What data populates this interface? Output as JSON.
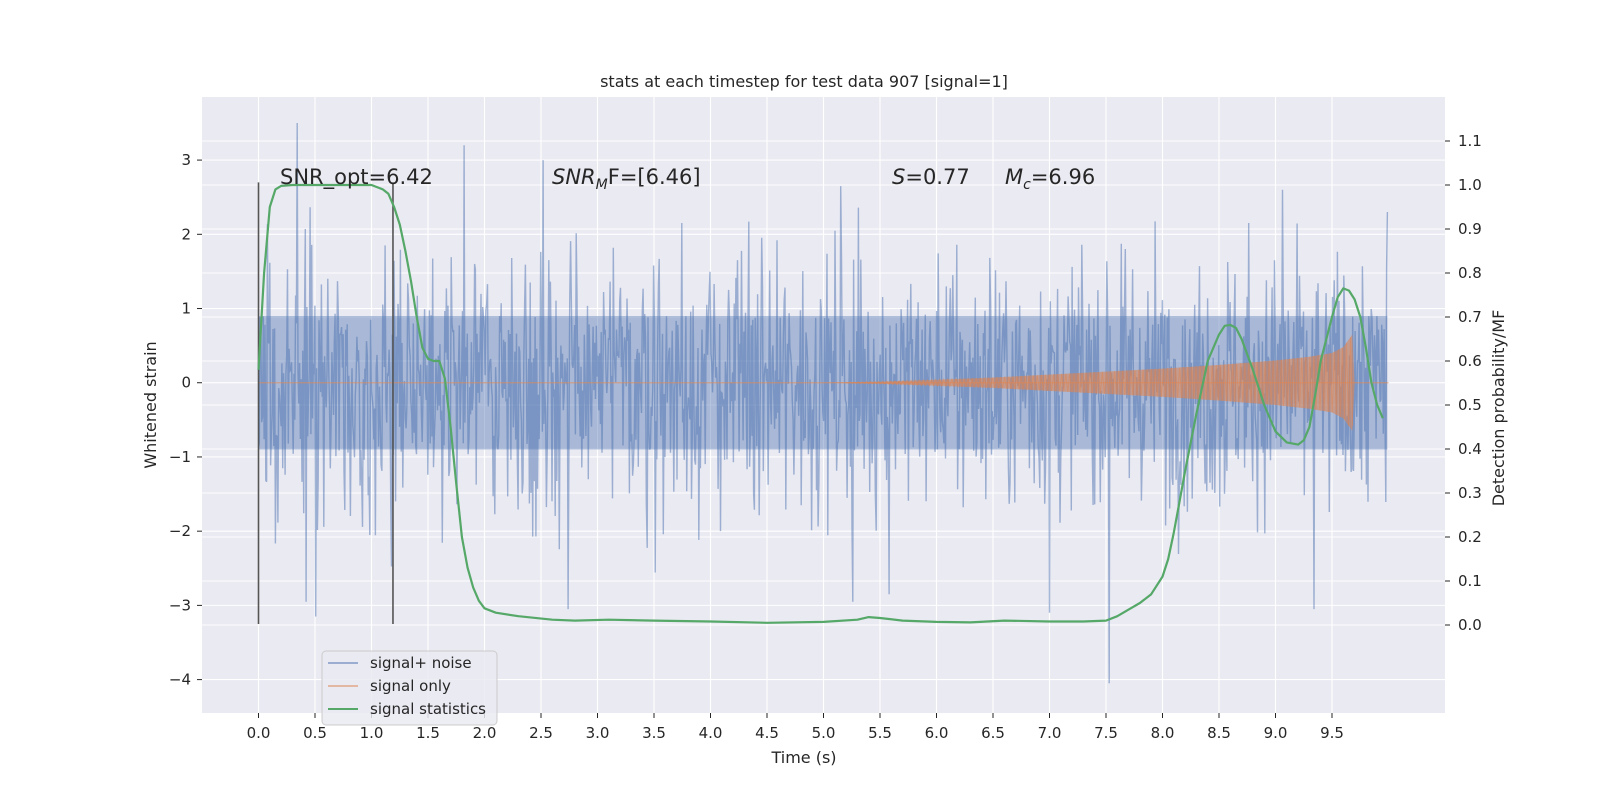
{
  "chart_data": {
    "type": "line",
    "title": "stats at each timestep for test data 907 [signal=1]",
    "xlabel": "Time (s)",
    "ylabel_left": "Whitened strain",
    "ylabel_right": "Detection probability/MF",
    "xlim": [
      -0.5,
      10.5
    ],
    "ylim_left": [
      -4.45,
      3.85
    ],
    "ylim_right": [
      -0.2,
      1.2
    ],
    "xticks": [
      0.0,
      0.5,
      1.0,
      1.5,
      2.0,
      2.5,
      3.0,
      3.5,
      4.0,
      4.5,
      5.0,
      5.5,
      6.0,
      6.5,
      7.0,
      7.5,
      8.0,
      8.5,
      9.0,
      9.5
    ],
    "xtick_labels": [
      "0.0",
      "0.5",
      "1.0",
      "1.5",
      "2.0",
      "2.5",
      "3.0",
      "3.5",
      "4.0",
      "4.5",
      "5.0",
      "5.5",
      "6.0",
      "6.5",
      "7.0",
      "7.5",
      "8.0",
      "8.5",
      "9.0",
      "9.5"
    ],
    "yticks_left": [
      -4,
      -3,
      -2,
      -1,
      0,
      1,
      2,
      3
    ],
    "ytick_labels_left": [
      "−4",
      "−3",
      "−2",
      "−1",
      "0",
      "1",
      "2",
      "3"
    ],
    "yticks_right": [
      0.0,
      0.1,
      0.2,
      0.3,
      0.4,
      0.5,
      0.6,
      0.7,
      0.8,
      0.9,
      1.0,
      1.1
    ],
    "ytick_labels_right": [
      "0.0",
      "0.1",
      "0.2",
      "0.3",
      "0.4",
      "0.5",
      "0.6",
      "0.7",
      "0.8",
      "0.9",
      "1.0",
      "1.1"
    ],
    "grid": true,
    "legend_position": "lower-left",
    "vertical_lines": [
      {
        "x": 0.0,
        "y_range": [
          -3.25,
          2.7
        ]
      },
      {
        "x": 1.19,
        "y_range": [
          -3.25,
          2.7
        ]
      }
    ],
    "annotations": {
      "snr_opt": "SNR_opt=6.42",
      "snr_mf_italic": "SNR",
      "snr_mf_sub": "M",
      "snr_mf_rest": "F=[6.46]",
      "s_italic": "S",
      "s_rest": "=0.77",
      "mc_italic": "M",
      "mc_sub": "c",
      "mc_rest": "=6.96"
    },
    "series": [
      {
        "name": "signal+ noise",
        "axis": "left",
        "color": "#4c72b0",
        "x_range": [
          0.0,
          9.99
        ],
        "spread": 0.85,
        "envelope_min": -3.2,
        "envelope_max": 3.5,
        "spikes": [
          [
            0.34,
            3.5
          ],
          [
            1.82,
            3.2
          ],
          [
            7.53,
            -4.05
          ],
          [
            7.0,
            -3.1
          ],
          [
            2.74,
            -3.05
          ],
          [
            0.51,
            -3.15
          ],
          [
            0.42,
            -2.95
          ],
          [
            5.26,
            -2.95
          ],
          [
            5.58,
            -2.85
          ],
          [
            9.34,
            -3.05
          ],
          [
            2.52,
            3.0
          ],
          [
            5.15,
            2.65
          ],
          [
            9.06,
            2.6
          ],
          [
            9.99,
            2.3
          ]
        ]
      },
      {
        "name": "signal only",
        "axis": "left",
        "color": "#dd8452",
        "x": [
          0.0,
          4.0,
          5.0,
          5.5,
          6.0,
          6.5,
          7.0,
          7.5,
          8.0,
          8.5,
          9.0,
          9.3,
          9.5,
          9.6,
          9.68,
          9.7,
          10.0
        ],
        "amplitude": [
          0.0,
          0.0,
          0.0,
          0.015,
          0.04,
          0.07,
          0.11,
          0.15,
          0.19,
          0.24,
          0.3,
          0.35,
          0.4,
          0.48,
          0.65,
          0.0,
          0.0
        ]
      },
      {
        "name": "signal statistics",
        "axis": "right",
        "color": "#55a868",
        "x": [
          0.0,
          0.05,
          0.1,
          0.15,
          0.2,
          0.3,
          0.5,
          0.8,
          1.0,
          1.1,
          1.15,
          1.2,
          1.25,
          1.3,
          1.35,
          1.4,
          1.45,
          1.5,
          1.55,
          1.6,
          1.65,
          1.7,
          1.75,
          1.8,
          1.85,
          1.9,
          1.95,
          2.0,
          2.1,
          2.3,
          2.6,
          2.8,
          3.1,
          3.5,
          4.0,
          4.5,
          5.0,
          5.3,
          5.4,
          5.5,
          5.7,
          6.0,
          6.3,
          6.6,
          7.0,
          7.3,
          7.5,
          7.6,
          7.7,
          7.8,
          7.9,
          8.0,
          8.05,
          8.1,
          8.15,
          8.2,
          8.3,
          8.4,
          8.5,
          8.55,
          8.6,
          8.65,
          8.7,
          8.8,
          8.9,
          9.0,
          9.1,
          9.2,
          9.25,
          9.3,
          9.35,
          9.4,
          9.5,
          9.55,
          9.6,
          9.65,
          9.7,
          9.75,
          9.8,
          9.85,
          9.9,
          9.95
        ],
        "y": [
          0.58,
          0.8,
          0.95,
          0.99,
          0.998,
          1.0,
          1.0,
          1.0,
          1.0,
          0.99,
          0.98,
          0.95,
          0.91,
          0.85,
          0.78,
          0.7,
          0.63,
          0.605,
          0.6,
          0.6,
          0.56,
          0.45,
          0.32,
          0.2,
          0.13,
          0.085,
          0.055,
          0.038,
          0.028,
          0.02,
          0.012,
          0.01,
          0.012,
          0.01,
          0.008,
          0.005,
          0.007,
          0.012,
          0.018,
          0.016,
          0.01,
          0.007,
          0.006,
          0.01,
          0.008,
          0.008,
          0.01,
          0.02,
          0.035,
          0.05,
          0.07,
          0.11,
          0.15,
          0.21,
          0.28,
          0.35,
          0.48,
          0.6,
          0.66,
          0.68,
          0.682,
          0.675,
          0.65,
          0.58,
          0.5,
          0.44,
          0.415,
          0.41,
          0.42,
          0.45,
          0.52,
          0.6,
          0.7,
          0.745,
          0.765,
          0.76,
          0.74,
          0.7,
          0.63,
          0.55,
          0.5,
          0.47
        ]
      }
    ]
  }
}
